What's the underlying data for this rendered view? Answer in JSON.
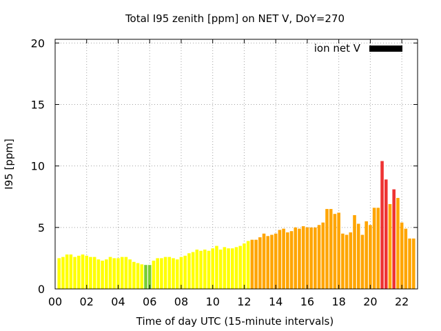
{
  "chart_data": {
    "type": "bar",
    "title": "Total I95 zenith [ppm] on NET V, DoY=270",
    "xlabel": "Time of day UTC (15-minute intervals)",
    "ylabel": "I95 [ppm]",
    "xlim": [
      0,
      23
    ],
    "ylim": [
      0,
      20.3
    ],
    "x_ticks": [
      {
        "value": 0,
        "label": "00"
      },
      {
        "value": 2,
        "label": "02"
      },
      {
        "value": 4,
        "label": "04"
      },
      {
        "value": 6,
        "label": "06"
      },
      {
        "value": 8,
        "label": "08"
      },
      {
        "value": 10,
        "label": "10"
      },
      {
        "value": 12,
        "label": "12"
      },
      {
        "value": 14,
        "label": "14"
      },
      {
        "value": 16,
        "label": "16"
      },
      {
        "value": 18,
        "label": "18"
      },
      {
        "value": 20,
        "label": "20"
      },
      {
        "value": 22,
        "label": "22"
      }
    ],
    "y_ticks": [
      {
        "value": 0,
        "label": "0"
      },
      {
        "value": 5,
        "label": "5"
      },
      {
        "value": 10,
        "label": "10"
      },
      {
        "value": 15,
        "label": "15"
      },
      {
        "value": 20,
        "label": "20"
      }
    ],
    "grid": true,
    "legend": {
      "label": "ion net V",
      "position": "top-right",
      "color": "#000000"
    },
    "interval_hours": 0.25,
    "bar_width_hours": 0.2,
    "colors": {
      "yellow": "#ffff00",
      "green": "#77cc33",
      "orange": "#ffa500",
      "red": "#ee3333"
    },
    "bars": [
      {
        "t": 0.25,
        "v": 2.5,
        "c": "yellow"
      },
      {
        "t": 0.5,
        "v": 2.6,
        "c": "yellow"
      },
      {
        "t": 0.75,
        "v": 2.8,
        "c": "yellow"
      },
      {
        "t": 1.0,
        "v": 2.8,
        "c": "yellow"
      },
      {
        "t": 1.25,
        "v": 2.6,
        "c": "yellow"
      },
      {
        "t": 1.5,
        "v": 2.7,
        "c": "yellow"
      },
      {
        "t": 1.75,
        "v": 2.8,
        "c": "yellow"
      },
      {
        "t": 2.0,
        "v": 2.7,
        "c": "yellow"
      },
      {
        "t": 2.25,
        "v": 2.6,
        "c": "yellow"
      },
      {
        "t": 2.5,
        "v": 2.6,
        "c": "yellow"
      },
      {
        "t": 2.75,
        "v": 2.4,
        "c": "yellow"
      },
      {
        "t": 3.0,
        "v": 2.3,
        "c": "yellow"
      },
      {
        "t": 3.25,
        "v": 2.4,
        "c": "yellow"
      },
      {
        "t": 3.5,
        "v": 2.6,
        "c": "yellow"
      },
      {
        "t": 3.75,
        "v": 2.5,
        "c": "yellow"
      },
      {
        "t": 4.0,
        "v": 2.5,
        "c": "yellow"
      },
      {
        "t": 4.25,
        "v": 2.6,
        "c": "yellow"
      },
      {
        "t": 4.5,
        "v": 2.6,
        "c": "yellow"
      },
      {
        "t": 4.75,
        "v": 2.4,
        "c": "yellow"
      },
      {
        "t": 5.0,
        "v": 2.2,
        "c": "yellow"
      },
      {
        "t": 5.25,
        "v": 2.1,
        "c": "yellow"
      },
      {
        "t": 5.5,
        "v": 2.0,
        "c": "yellow"
      },
      {
        "t": 5.75,
        "v": 1.95,
        "c": "green"
      },
      {
        "t": 6.0,
        "v": 1.95,
        "c": "green"
      },
      {
        "t": 6.25,
        "v": 2.3,
        "c": "yellow"
      },
      {
        "t": 6.5,
        "v": 2.5,
        "c": "yellow"
      },
      {
        "t": 6.75,
        "v": 2.5,
        "c": "yellow"
      },
      {
        "t": 7.0,
        "v": 2.6,
        "c": "yellow"
      },
      {
        "t": 7.25,
        "v": 2.6,
        "c": "yellow"
      },
      {
        "t": 7.5,
        "v": 2.5,
        "c": "yellow"
      },
      {
        "t": 7.75,
        "v": 2.4,
        "c": "yellow"
      },
      {
        "t": 8.0,
        "v": 2.6,
        "c": "yellow"
      },
      {
        "t": 8.25,
        "v": 2.7,
        "c": "yellow"
      },
      {
        "t": 8.5,
        "v": 2.9,
        "c": "yellow"
      },
      {
        "t": 8.75,
        "v": 3.0,
        "c": "yellow"
      },
      {
        "t": 9.0,
        "v": 3.2,
        "c": "yellow"
      },
      {
        "t": 9.25,
        "v": 3.1,
        "c": "yellow"
      },
      {
        "t": 9.5,
        "v": 3.2,
        "c": "yellow"
      },
      {
        "t": 9.75,
        "v": 3.1,
        "c": "yellow"
      },
      {
        "t": 10.0,
        "v": 3.3,
        "c": "yellow"
      },
      {
        "t": 10.25,
        "v": 3.5,
        "c": "yellow"
      },
      {
        "t": 10.5,
        "v": 3.2,
        "c": "yellow"
      },
      {
        "t": 10.75,
        "v": 3.4,
        "c": "yellow"
      },
      {
        "t": 11.0,
        "v": 3.3,
        "c": "yellow"
      },
      {
        "t": 11.25,
        "v": 3.3,
        "c": "yellow"
      },
      {
        "t": 11.5,
        "v": 3.4,
        "c": "yellow"
      },
      {
        "t": 11.75,
        "v": 3.5,
        "c": "yellow"
      },
      {
        "t": 12.0,
        "v": 3.7,
        "c": "yellow"
      },
      {
        "t": 12.25,
        "v": 3.9,
        "c": "yellow"
      },
      {
        "t": 12.5,
        "v": 4.0,
        "c": "orange"
      },
      {
        "t": 12.75,
        "v": 4.0,
        "c": "orange"
      },
      {
        "t": 13.0,
        "v": 4.2,
        "c": "orange"
      },
      {
        "t": 13.25,
        "v": 4.5,
        "c": "orange"
      },
      {
        "t": 13.5,
        "v": 4.3,
        "c": "orange"
      },
      {
        "t": 13.75,
        "v": 4.4,
        "c": "orange"
      },
      {
        "t": 14.0,
        "v": 4.5,
        "c": "orange"
      },
      {
        "t": 14.25,
        "v": 4.8,
        "c": "orange"
      },
      {
        "t": 14.5,
        "v": 4.9,
        "c": "orange"
      },
      {
        "t": 14.75,
        "v": 4.6,
        "c": "orange"
      },
      {
        "t": 15.0,
        "v": 4.7,
        "c": "orange"
      },
      {
        "t": 15.25,
        "v": 5.0,
        "c": "orange"
      },
      {
        "t": 15.5,
        "v": 4.9,
        "c": "orange"
      },
      {
        "t": 15.75,
        "v": 5.1,
        "c": "orange"
      },
      {
        "t": 16.0,
        "v": 5.0,
        "c": "orange"
      },
      {
        "t": 16.25,
        "v": 5.0,
        "c": "orange"
      },
      {
        "t": 16.5,
        "v": 5.0,
        "c": "orange"
      },
      {
        "t": 16.75,
        "v": 5.2,
        "c": "orange"
      },
      {
        "t": 17.0,
        "v": 5.4,
        "c": "orange"
      },
      {
        "t": 17.25,
        "v": 6.5,
        "c": "orange"
      },
      {
        "t": 17.5,
        "v": 6.5,
        "c": "orange"
      },
      {
        "t": 17.75,
        "v": 6.1,
        "c": "orange"
      },
      {
        "t": 18.0,
        "v": 6.2,
        "c": "orange"
      },
      {
        "t": 18.25,
        "v": 4.5,
        "c": "orange"
      },
      {
        "t": 18.5,
        "v": 4.4,
        "c": "orange"
      },
      {
        "t": 18.75,
        "v": 4.6,
        "c": "orange"
      },
      {
        "t": 19.0,
        "v": 6.0,
        "c": "orange"
      },
      {
        "t": 19.25,
        "v": 5.3,
        "c": "orange"
      },
      {
        "t": 19.5,
        "v": 4.4,
        "c": "orange"
      },
      {
        "t": 19.75,
        "v": 5.5,
        "c": "orange"
      },
      {
        "t": 20.0,
        "v": 5.2,
        "c": "orange"
      },
      {
        "t": 20.25,
        "v": 6.6,
        "c": "orange"
      },
      {
        "t": 20.5,
        "v": 6.6,
        "c": "orange"
      },
      {
        "t": 20.75,
        "v": 10.4,
        "c": "red"
      },
      {
        "t": 21.0,
        "v": 8.9,
        "c": "red"
      },
      {
        "t": 21.25,
        "v": 6.9,
        "c": "orange"
      },
      {
        "t": 21.5,
        "v": 8.1,
        "c": "red"
      },
      {
        "t": 21.75,
        "v": 7.4,
        "c": "orange"
      },
      {
        "t": 22.0,
        "v": 5.4,
        "c": "orange"
      },
      {
        "t": 22.25,
        "v": 4.9,
        "c": "orange"
      },
      {
        "t": 22.5,
        "v": 4.1,
        "c": "orange"
      },
      {
        "t": 22.75,
        "v": 4.1,
        "c": "orange"
      }
    ]
  }
}
